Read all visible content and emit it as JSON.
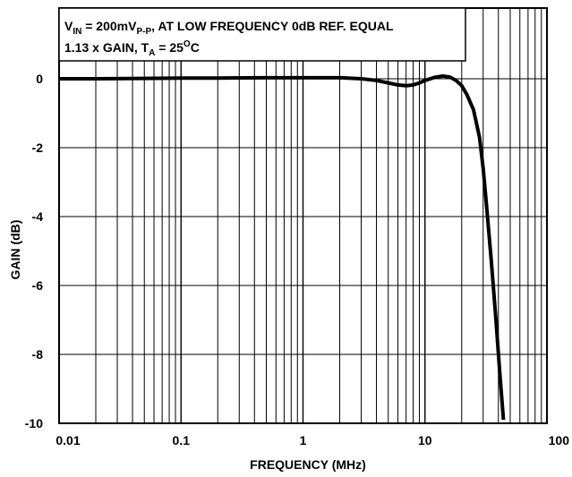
{
  "chart_data": {
    "type": "line",
    "title": "",
    "xlabel": "FREQUENCY (MHz)",
    "ylabel": "GAIN (dB)",
    "x_scale": "log",
    "xlim": [
      0.01,
      100
    ],
    "ylim": [
      -10,
      0.8
    ],
    "grid": true,
    "x_ticks": [
      0.01,
      0.1,
      1,
      10,
      100
    ],
    "x_tick_labels": [
      "0.01",
      "0.1",
      "1",
      "10",
      "100"
    ],
    "y_ticks": [
      0,
      -2,
      -4,
      -6,
      -8,
      -10
    ],
    "y_tick_labels": [
      "0",
      "-2",
      "-4",
      "-6",
      "-8",
      "-10"
    ],
    "annotation": {
      "line1": {
        "v": "V",
        "v_sub": "IN",
        "mid": " = 200mV",
        "pp_sub": "P-P",
        "rest": ", AT LOW FREQUENCY 0dB REF. EQUAL"
      },
      "line2": {
        "gain": "1.13 x GAIN, T",
        "t_sub": "A",
        "eq": " = 25",
        "deg_sup": "O",
        "unit": "C"
      }
    },
    "series": [
      {
        "x": [
          0.01,
          0.02,
          0.05,
          0.1,
          0.2,
          0.5,
          1,
          2,
          3,
          4,
          5,
          6,
          7,
          8,
          9,
          10,
          12,
          14,
          16,
          18,
          20,
          22,
          25,
          28,
          30,
          32,
          35,
          38,
          41,
          44
        ],
        "y": [
          0.0,
          0.0,
          0.01,
          0.02,
          0.02,
          0.03,
          0.03,
          0.03,
          0.0,
          -0.05,
          -0.12,
          -0.18,
          -0.2,
          -0.18,
          -0.12,
          -0.05,
          0.04,
          0.08,
          0.05,
          -0.05,
          -0.2,
          -0.45,
          -0.9,
          -1.7,
          -2.6,
          -3.7,
          -5.3,
          -6.9,
          -8.5,
          -9.9
        ]
      }
    ]
  }
}
